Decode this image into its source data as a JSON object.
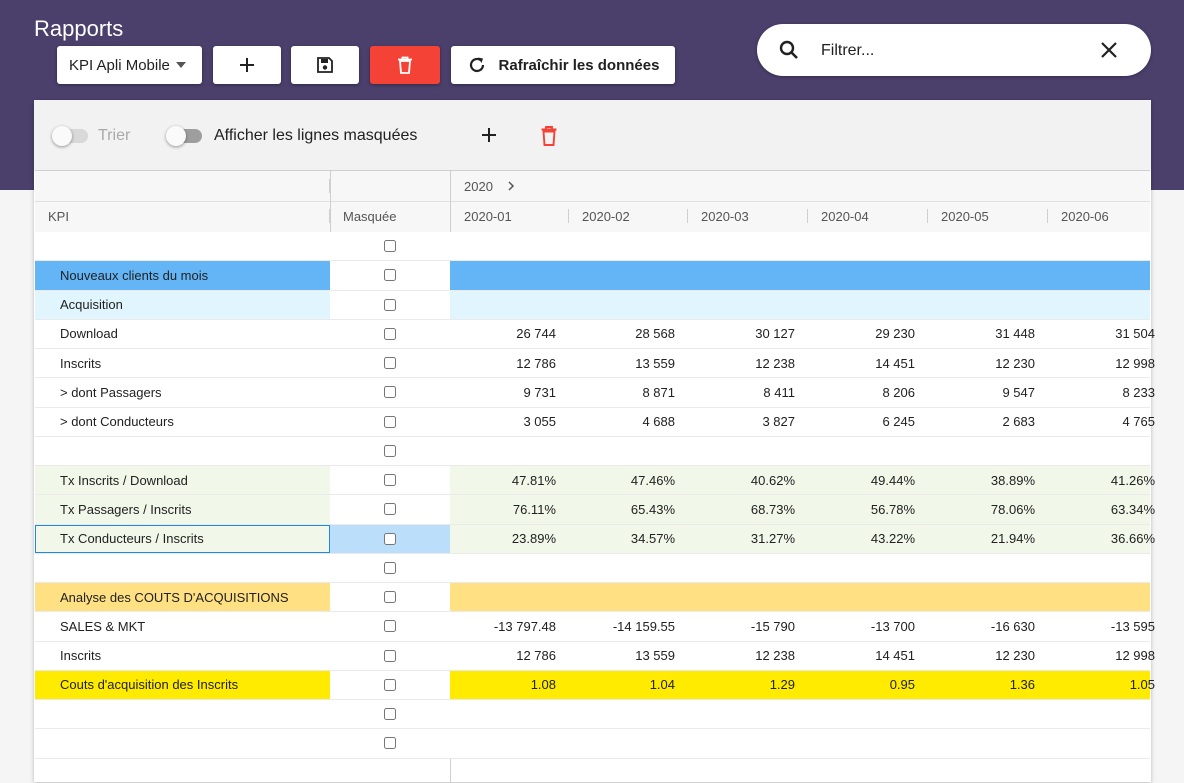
{
  "app": {
    "title": "Rapports"
  },
  "header": {
    "report_select": "KPI Apli Mobile",
    "refresh_label": "Rafraîchir les données",
    "search_placeholder": "Filtrer..."
  },
  "toolbar": {
    "sort_label": "Trier",
    "show_hidden_label": "Afficher les lignes masquées"
  },
  "grid": {
    "year_group": "2020",
    "kpi_header": "KPI",
    "masked_header": "Masquée",
    "months": [
      "2020-01",
      "2020-02",
      "2020-03",
      "2020-04",
      "2020-05",
      "2020-06"
    ],
    "rows": [
      {
        "label": "",
        "style": "plain",
        "values": [
          "",
          "",
          "",
          "",
          "",
          ""
        ]
      },
      {
        "label": "Nouveaux clients du mois",
        "style": "blue",
        "values": [
          "",
          "",
          "",
          "",
          "",
          ""
        ]
      },
      {
        "label": "Acquisition",
        "style": "lightblue",
        "values": [
          "",
          "",
          "",
          "",
          "",
          ""
        ]
      },
      {
        "label": "Download",
        "style": "plain",
        "values": [
          "26 744",
          "28 568",
          "30 127",
          "29 230",
          "31 448",
          "31 504"
        ]
      },
      {
        "label": "Inscrits",
        "style": "plain",
        "values": [
          "12 786",
          "13 559",
          "12 238",
          "14 451",
          "12 230",
          "12 998"
        ]
      },
      {
        "label": "> dont Passagers",
        "style": "plain",
        "values": [
          "9 731",
          "8 871",
          "8 411",
          "8 206",
          "9 547",
          "8 233"
        ]
      },
      {
        "label": "> dont Conducteurs",
        "style": "plain",
        "values": [
          "3 055",
          "4 688",
          "3 827",
          "6 245",
          "2 683",
          "4 765"
        ]
      },
      {
        "label": "",
        "style": "plain",
        "values": [
          "",
          "",
          "",
          "",
          "",
          ""
        ]
      },
      {
        "label": "Tx Inscrits / Download",
        "style": "green",
        "values": [
          "47.81%",
          "47.46%",
          "40.62%",
          "49.44%",
          "38.89%",
          "41.26%"
        ]
      },
      {
        "label": "Tx Passagers / Inscrits",
        "style": "green",
        "values": [
          "76.11%",
          "65.43%",
          "68.73%",
          "56.78%",
          "78.06%",
          "63.34%"
        ]
      },
      {
        "label": "Tx Conducteurs / Inscrits",
        "style": "green-selected",
        "values": [
          "23.89%",
          "34.57%",
          "31.27%",
          "43.22%",
          "21.94%",
          "36.66%"
        ]
      },
      {
        "label": "",
        "style": "plain",
        "values": [
          "",
          "",
          "",
          "",
          "",
          ""
        ]
      },
      {
        "label": "Analyse des COUTS D'ACQUISITIONS",
        "style": "orange",
        "values": [
          "",
          "",
          "",
          "",
          "",
          ""
        ]
      },
      {
        "label": "SALES & MKT",
        "style": "plain",
        "values": [
          "-13 797.48",
          "-14 159.55",
          "-15 790",
          "-13 700",
          "-16 630",
          "-13 595"
        ]
      },
      {
        "label": "Inscrits",
        "style": "plain",
        "values": [
          "12 786",
          "13 559",
          "12 238",
          "14 451",
          "12 230",
          "12 998"
        ]
      },
      {
        "label": "Couts d'acquisition des Inscrits",
        "style": "yellow",
        "values": [
          "1.08",
          "1.04",
          "1.29",
          "0.95",
          "1.36",
          "1.05"
        ]
      },
      {
        "label": "",
        "style": "plain",
        "values": [
          "",
          "",
          "",
          "",
          "",
          ""
        ]
      },
      {
        "label": "",
        "style": "plain",
        "values": [
          "",
          "",
          "",
          "",
          "",
          ""
        ]
      }
    ]
  },
  "colors": {
    "header_bg": "#4b3f6b",
    "delete_red": "#f44336",
    "row_blue": "#64b5f6",
    "row_lightblue": "#e1f5fe",
    "row_green": "#f1f8e9",
    "row_orange": "#ffe082",
    "row_yellow": "#ffeb00",
    "selected_mask": "#bbdefb"
  }
}
